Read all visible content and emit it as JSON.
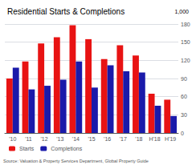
{
  "chart_data": {
    "type": "bar",
    "title": "Residential Starts & Completions",
    "ylabel": "1,000",
    "annotations": [
      "Source: Valuation & Property Services Department, Global Property Guide"
    ],
    "categories": [
      "'10",
      "'11",
      "'12",
      "'13",
      "'14",
      "'15",
      "'16",
      "'17",
      "'18",
      "H'18",
      "H'19"
    ],
    "series": [
      {
        "name": "Starts",
        "color": "#e81313",
        "values": [
          90,
          118,
          148,
          158,
          178,
          155,
          122,
          145,
          128,
          65,
          55
        ]
      },
      {
        "name": "Completions",
        "color": "#1a1aaa",
        "values": [
          108,
          72,
          78,
          88,
          118,
          75,
          112,
          102,
          100,
          45,
          28
        ]
      }
    ],
    "ylim": [
      0,
      180
    ],
    "yticks": [
      0,
      30,
      60,
      90,
      120,
      150,
      180
    ],
    "grid": true,
    "legend": "lower left"
  }
}
